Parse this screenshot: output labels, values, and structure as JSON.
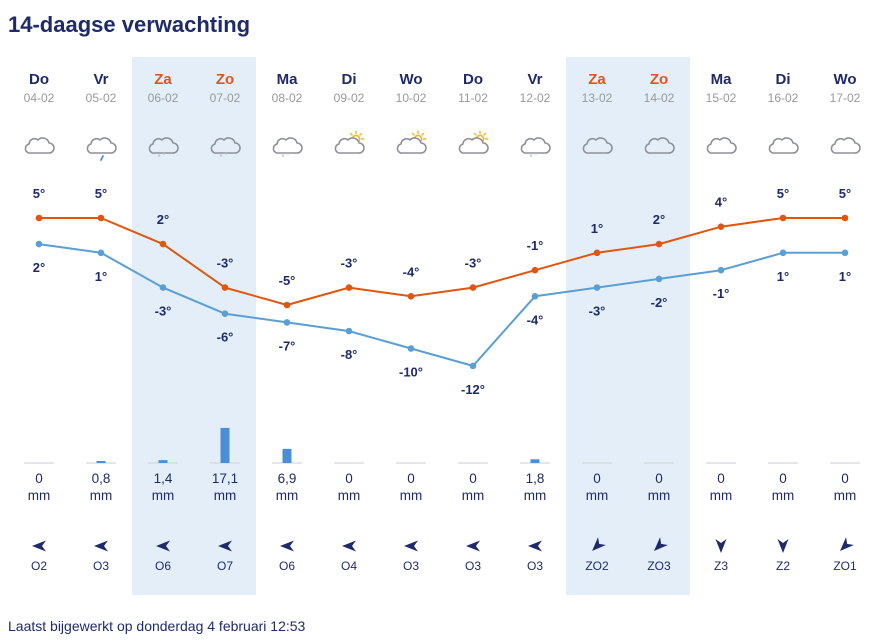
{
  "title": "14-daagse verwachting",
  "updated": "Laatst bijgewerkt op donderdag 4 februari 12:53",
  "colors": {
    "max_line": "#e0560f",
    "min_line": "#5a9fd4",
    "weekend_bg": "#e3eef9",
    "weekend_text": "#e5531a",
    "text": "#1f2a6b",
    "bar": "#4a8fd6",
    "icon_stroke": "#8e9199",
    "sun": "#f6b221"
  },
  "precip_unit": "mm",
  "days": [
    {
      "day": "Do",
      "date": "04-02",
      "weekend": false,
      "icon": "cloud-icon",
      "max": "5°",
      "min": "2°",
      "precip": "0",
      "wind_dir": "O",
      "wind": "O2"
    },
    {
      "day": "Vr",
      "date": "05-02",
      "weekend": false,
      "icon": "cloud-rain-icon",
      "max": "5°",
      "min": "1°",
      "precip": "0,8",
      "wind_dir": "O",
      "wind": "O3"
    },
    {
      "day": "Za",
      "date": "06-02",
      "weekend": true,
      "icon": "cloud-snow-icon",
      "max": "2°",
      "min": "-3°",
      "precip": "1,4",
      "wind_dir": "O",
      "wind": "O6"
    },
    {
      "day": "Zo",
      "date": "07-02",
      "weekend": true,
      "icon": "cloud-snow-icon",
      "max": "-3°",
      "min": "-6°",
      "precip": "17,1",
      "wind_dir": "O",
      "wind": "O7"
    },
    {
      "day": "Ma",
      "date": "08-02",
      "weekend": false,
      "icon": "cloud-snow-icon",
      "max": "-5°",
      "min": "-7°",
      "precip": "6,9",
      "wind_dir": "O",
      "wind": "O6"
    },
    {
      "day": "Di",
      "date": "09-02",
      "weekend": false,
      "icon": "cloud-sun-icon",
      "max": "-3°",
      "min": "-8°",
      "precip": "0",
      "wind_dir": "O",
      "wind": "O4"
    },
    {
      "day": "Wo",
      "date": "10-02",
      "weekend": false,
      "icon": "cloud-sun-icon",
      "max": "-4°",
      "min": "-10°",
      "precip": "0",
      "wind_dir": "O",
      "wind": "O3"
    },
    {
      "day": "Do",
      "date": "11-02",
      "weekend": false,
      "icon": "cloud-sun-icon",
      "max": "-3°",
      "min": "-12°",
      "precip": "0",
      "wind_dir": "O",
      "wind": "O3"
    },
    {
      "day": "Vr",
      "date": "12-02",
      "weekend": false,
      "icon": "cloud-snow-icon",
      "max": "-1°",
      "min": "-4°",
      "precip": "1,8",
      "wind_dir": "O",
      "wind": "O3"
    },
    {
      "day": "Za",
      "date": "13-02",
      "weekend": true,
      "icon": "cloud-icon",
      "max": "1°",
      "min": "-3°",
      "precip": "0",
      "wind_dir": "ZO",
      "wind": "ZO2"
    },
    {
      "day": "Zo",
      "date": "14-02",
      "weekend": true,
      "icon": "cloud-icon",
      "max": "2°",
      "min": "-2°",
      "precip": "0",
      "wind_dir": "ZO",
      "wind": "ZO3"
    },
    {
      "day": "Ma",
      "date": "15-02",
      "weekend": false,
      "icon": "cloud-icon",
      "max": "4°",
      "min": "-1°",
      "precip": "0",
      "wind_dir": "Z",
      "wind": "Z3"
    },
    {
      "day": "Di",
      "date": "16-02",
      "weekend": false,
      "icon": "cloud-icon",
      "max": "5°",
      "min": "1°",
      "precip": "0",
      "wind_dir": "Z",
      "wind": "Z2"
    },
    {
      "day": "Wo",
      "date": "17-02",
      "weekend": false,
      "icon": "cloud-icon",
      "max": "5°",
      "min": "1°",
      "precip": "0",
      "wind_dir": "ZO",
      "wind": "ZO1"
    }
  ],
  "chart_data": {
    "type": "line",
    "categories": [
      "04-02",
      "05-02",
      "06-02",
      "07-02",
      "08-02",
      "09-02",
      "10-02",
      "11-02",
      "12-02",
      "13-02",
      "14-02",
      "15-02",
      "16-02",
      "17-02"
    ],
    "series": [
      {
        "values": [
          5,
          5,
          2,
          -3,
          -5,
          -3,
          -4,
          -3,
          -1,
          1,
          2,
          4,
          5,
          5
        ]
      },
      {
        "values": [
          2,
          1,
          -3,
          -6,
          -7,
          -8,
          -10,
          -12,
          -4,
          -3,
          -2,
          -1,
          1,
          1
        ]
      }
    ],
    "bars": {
      "unit": "mm",
      "values": [
        0,
        0.8,
        1.4,
        17.1,
        6.9,
        0,
        0,
        0,
        1.8,
        0,
        0,
        0,
        0,
        0
      ]
    }
  }
}
